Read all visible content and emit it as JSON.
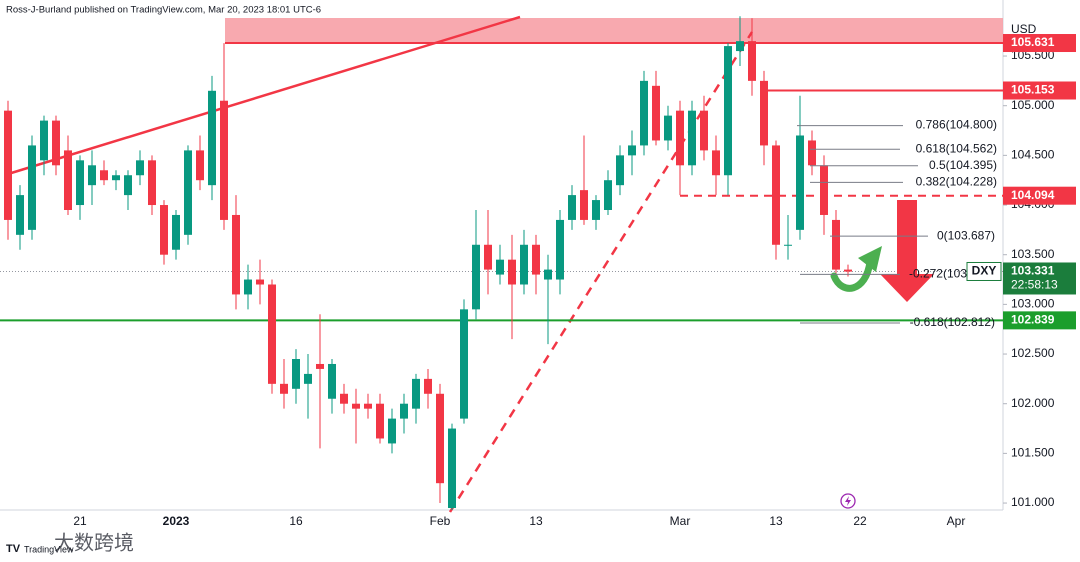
{
  "chart_data": {
    "type": "candlestick",
    "header": "Ross-J-Burland published on TradingView.com, Mar 20, 2023 18:01 UTC-6",
    "currency_label": "USD",
    "symbol": "DXY",
    "countdown": "22:58:13",
    "watermark": "TradingView",
    "watermark_cn": "大数跨境",
    "up_color": "#089981",
    "down_color": "#f23645",
    "categories": [
      null,
      null,
      null,
      null,
      null,
      null,
      "21",
      null,
      null,
      null,
      null,
      null,
      null,
      null,
      "2023",
      null,
      null,
      null,
      null,
      null,
      null,
      null,
      null,
      null,
      "16",
      null,
      null,
      null,
      null,
      null,
      null,
      null,
      null,
      null,
      null,
      null,
      "Feb",
      null,
      null,
      null,
      null,
      null,
      null,
      null,
      "13",
      null,
      null,
      null,
      null,
      null,
      null,
      null,
      null,
      null,
      null,
      null,
      "Mar",
      null,
      null,
      null,
      null,
      null,
      null,
      null,
      "13",
      null,
      null,
      null,
      null,
      null,
      null,
      "22",
      null,
      null,
      null,
      null,
      null,
      null,
      null,
      "Apr"
    ],
    "open": [
      104.95,
      103.7,
      103.75,
      104.45,
      104.85,
      104.55,
      104.0,
      104.2,
      104.35,
      104.25,
      104.1,
      104.3,
      104.45,
      104.0,
      103.55,
      103.7,
      104.55,
      104.2,
      105.05,
      103.9,
      103.1,
      103.25,
      103.2,
      102.2,
      102.15,
      102.2,
      102.4,
      102.05,
      102.1,
      102.0,
      102.0,
      102.0,
      101.6,
      101.85,
      101.95,
      102.25,
      102.1,
      100.95,
      101.85,
      102.95,
      103.6,
      103.3,
      103.45,
      103.2,
      103.6,
      103.25,
      103.25,
      103.85,
      104.15,
      103.85,
      103.95,
      104.2,
      104.5,
      104.6,
      105.2,
      104.65,
      104.95,
      104.4,
      104.95,
      104.55,
      104.3,
      105.55,
      105.65,
      105.25,
      104.6,
      103.6,
      103.75,
      104.65,
      104.4,
      103.85,
      103.35,
      null,
      null,
      null,
      null,
      null,
      null,
      null,
      null,
      null
    ],
    "high": [
      105.05,
      104.2,
      104.7,
      104.9,
      104.9,
      104.7,
      104.5,
      104.55,
      104.45,
      104.35,
      104.35,
      104.55,
      104.5,
      104.05,
      103.95,
      104.6,
      104.7,
      105.3,
      105.63,
      104.1,
      103.4,
      103.45,
      103.25,
      102.45,
      102.55,
      102.5,
      102.9,
      102.45,
      102.2,
      102.15,
      102.1,
      102.1,
      101.95,
      102.1,
      102.3,
      102.35,
      102.2,
      101.8,
      103.05,
      103.95,
      103.95,
      103.6,
      103.7,
      103.75,
      103.7,
      103.5,
      103.95,
      104.2,
      104.7,
      104.1,
      104.35,
      104.6,
      104.75,
      105.35,
      105.35,
      105.0,
      105.05,
      105.05,
      105.1,
      104.7,
      105.63,
      105.9,
      105.88,
      105.35,
      104.65,
      103.9,
      105.1,
      104.75,
      104.5,
      103.95,
      103.4,
      null,
      null,
      null,
      null,
      null,
      null,
      null,
      null,
      null
    ],
    "low": [
      103.65,
      103.55,
      103.65,
      104.3,
      104.3,
      103.9,
      103.85,
      104.0,
      104.2,
      104.15,
      103.95,
      104.2,
      103.9,
      103.4,
      103.45,
      103.6,
      104.15,
      104.05,
      103.75,
      102.95,
      102.95,
      103.0,
      102.1,
      101.95,
      102.0,
      101.85,
      101.55,
      101.9,
      101.9,
      101.6,
      101.85,
      101.6,
      101.5,
      101.7,
      101.8,
      101.95,
      101.0,
      100.8,
      101.8,
      102.85,
      103.1,
      103.2,
      102.65,
      103.1,
      103.1,
      102.6,
      103.1,
      103.75,
      103.8,
      103.75,
      103.9,
      104.1,
      104.3,
      104.5,
      104.6,
      104.55,
      104.1,
      104.3,
      104.45,
      104.1,
      104.1,
      105.4,
      105.1,
      104.4,
      103.45,
      103.45,
      103.65,
      104.3,
      103.7,
      103.3,
      103.28,
      null,
      null,
      null,
      null,
      null,
      null,
      null,
      null,
      null
    ],
    "close": [
      103.85,
      104.1,
      104.6,
      104.85,
      104.4,
      103.95,
      104.45,
      104.4,
      104.25,
      104.3,
      104.3,
      104.45,
      104.0,
      103.5,
      103.9,
      104.55,
      104.25,
      105.15,
      103.85,
      103.1,
      103.25,
      103.2,
      102.2,
      102.1,
      102.45,
      102.3,
      102.35,
      102.4,
      102.0,
      101.95,
      101.95,
      101.65,
      101.85,
      102.0,
      102.25,
      102.1,
      101.2,
      101.75,
      102.95,
      103.6,
      103.35,
      103.45,
      103.2,
      103.6,
      103.3,
      103.35,
      103.85,
      104.1,
      103.85,
      104.05,
      104.25,
      104.5,
      104.6,
      105.25,
      104.65,
      104.9,
      104.4,
      104.95,
      104.55,
      104.3,
      105.6,
      105.65,
      105.25,
      104.6,
      103.6,
      103.6,
      104.7,
      104.4,
      103.9,
      103.35,
      103.33,
      null,
      null,
      null,
      null,
      null,
      null,
      null,
      null,
      null
    ],
    "ylim": [
      100.93,
      106.064
    ],
    "yticks": [
      {
        "value": 105.5,
        "label": "105.500"
      },
      {
        "value": 105,
        "label": "105.000"
      },
      {
        "value": 104.5,
        "label": "104.500"
      },
      {
        "value": 104,
        "label": "104.000"
      },
      {
        "value": 103.5,
        "label": "103.500"
      },
      {
        "value": 103,
        "label": "103.000"
      },
      {
        "value": 102.5,
        "label": "102.500"
      },
      {
        "value": 102,
        "label": "102.000"
      },
      {
        "value": 101.5,
        "label": "101.500"
      },
      {
        "value": 101,
        "label": "101.000"
      }
    ],
    "levels": [
      {
        "value": 105.631,
        "label": "105.631",
        "color": "#f23645"
      },
      {
        "value": 105.153,
        "label": "105.153",
        "color": "#f23645"
      },
      {
        "value": 104.094,
        "label": "104.094",
        "color": "#f23645"
      },
      {
        "value": 103.331,
        "label": "103.331",
        "color": "#1b7d3c"
      },
      {
        "value": 102.839,
        "label": "102.839",
        "color": "#1b9e2c"
      }
    ],
    "fib": [
      {
        "value": 104.8,
        "label": "0.786(104.800)"
      },
      {
        "value": 104.562,
        "label": "0.618(104.562)"
      },
      {
        "value": 104.395,
        "label": "0.5(104.395)"
      },
      {
        "value": 104.228,
        "label": "0.382(104.228)"
      },
      {
        "value": 103.687,
        "label": "0(103.687)"
      },
      {
        "value": 103.302,
        "label": "-0.272(103"
      },
      {
        "value": 102.812,
        "label": "-0.618(102.812)"
      }
    ]
  }
}
